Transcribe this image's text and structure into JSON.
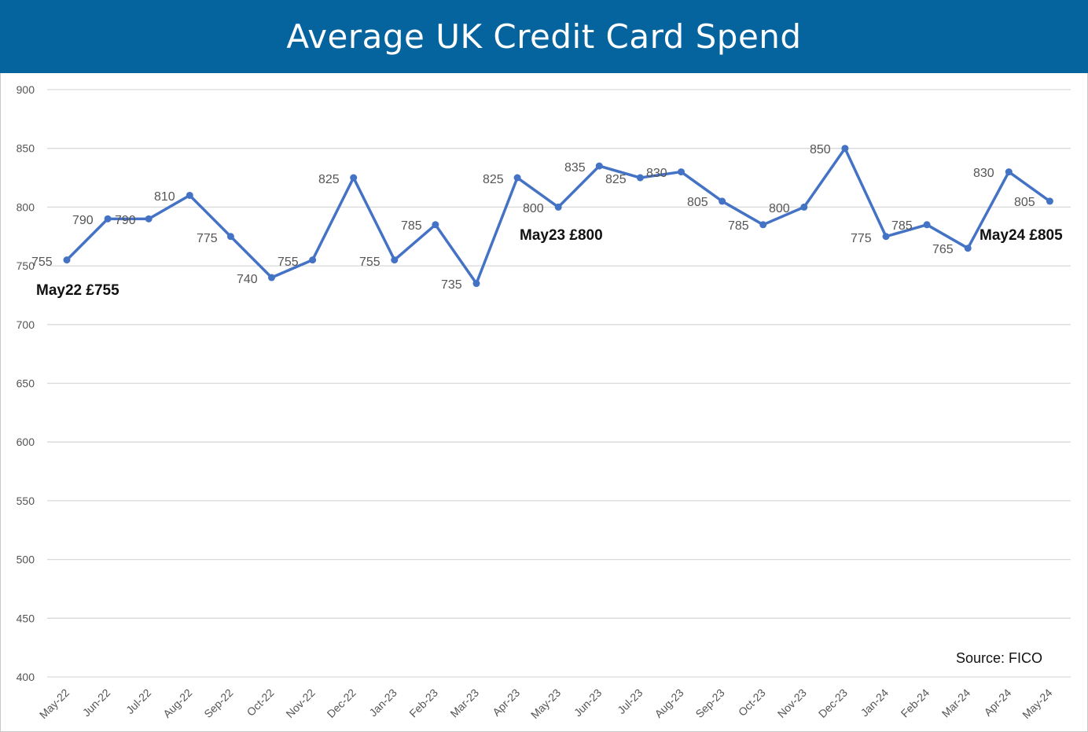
{
  "title": "Average UK Credit Card Spend",
  "source": "Source: FICO",
  "colors": {
    "header": "#05639e",
    "line": "#4472c4",
    "grid": "#d9d9d9"
  },
  "chart_data": {
    "type": "line",
    "categories": [
      "May-22",
      "Jun-22",
      "Jul-22",
      "Aug-22",
      "Sep-22",
      "Oct-22",
      "Nov-22",
      "Dec-22",
      "Jan-23",
      "Feb-23",
      "Mar-23",
      "Apr-23",
      "May-23",
      "Jun-23",
      "Jul-23",
      "Aug-23",
      "Sep-23",
      "Oct-23",
      "Nov-23",
      "Dec-23",
      "Jan-24",
      "Feb-24",
      "Mar-24",
      "Apr-24",
      "May-24"
    ],
    "values": [
      755,
      790,
      790,
      810,
      775,
      740,
      755,
      825,
      755,
      785,
      735,
      825,
      800,
      835,
      825,
      830,
      805,
      785,
      800,
      850,
      775,
      785,
      765,
      830,
      805
    ],
    "ylim": [
      400,
      900
    ],
    "yticks": [
      400,
      450,
      500,
      550,
      600,
      650,
      700,
      750,
      800,
      850,
      900
    ],
    "grid": true,
    "data_labels": true,
    "annotations": [
      {
        "text": "May22 £755",
        "category": "May-22"
      },
      {
        "text": "May23 £800",
        "category": "May-23"
      },
      {
        "text": "May24 £805",
        "category": "May-24"
      }
    ]
  }
}
